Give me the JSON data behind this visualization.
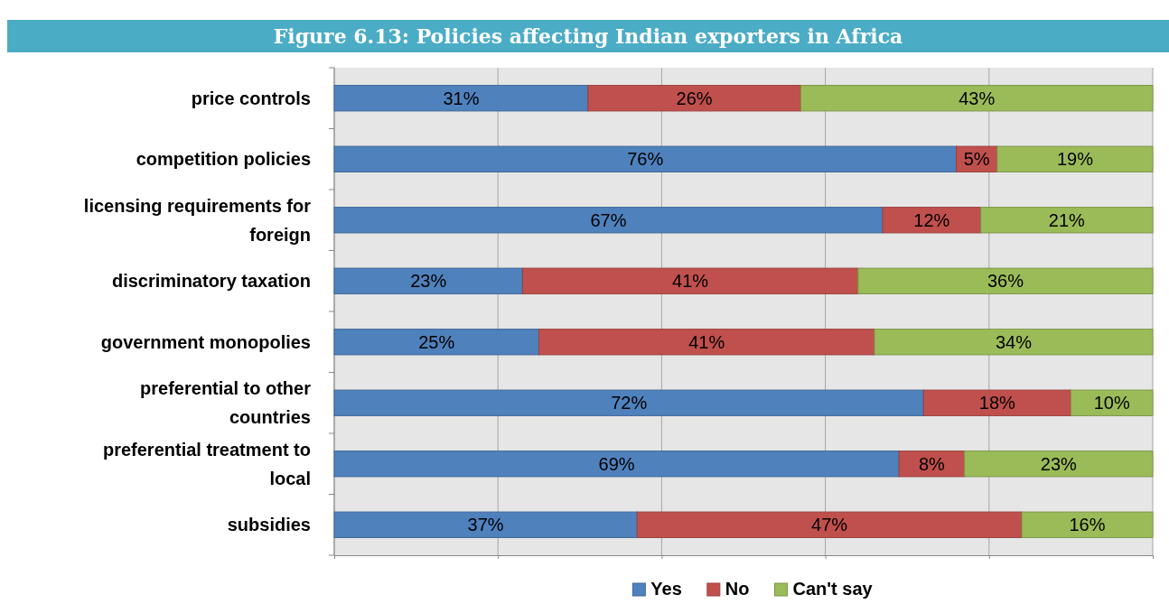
{
  "chart_data": {
    "type": "bar",
    "orientation": "horizontal",
    "stacked": true,
    "title": "Figure 6.13: Policies affecting Indian exporters in Africa",
    "categories": [
      "price controls",
      "competition policies",
      "licensing requirements for foreign",
      "discriminatory taxation",
      "government monopolies",
      "preferential to other countries",
      "preferential treatment to local",
      "subsidies"
    ],
    "series": [
      {
        "name": "Yes",
        "color": "#4f81bd",
        "values": [
          31,
          76,
          67,
          23,
          25,
          72,
          69,
          37
        ],
        "value_labels": [
          "31%",
          "76%",
          "67%",
          "23%",
          "25%",
          "72%",
          "69%",
          "37%"
        ]
      },
      {
        "name": "No",
        "color": "#c0504d",
        "values": [
          26,
          5,
          12,
          41,
          41,
          18,
          8,
          47
        ],
        "value_labels": [
          "26%",
          "5%",
          "12%",
          "41%",
          "41%",
          "18%",
          "8%",
          "47%"
        ]
      },
      {
        "name": "Can't say",
        "color": "#9bbb59",
        "values": [
          43,
          19,
          21,
          36,
          34,
          10,
          23,
          16
        ],
        "value_labels": [
          "43%",
          "19%",
          "21%",
          "36%",
          "34%",
          "10%",
          "23%",
          "16%"
        ]
      }
    ],
    "xlim": [
      0,
      100
    ],
    "xticks": [
      {
        "value": 0,
        "label": null
      },
      {
        "value": 20,
        "label": null
      },
      {
        "value": 40,
        "label": null
      },
      {
        "value": 60,
        "label": null
      },
      {
        "value": 80,
        "label": null
      },
      {
        "value": 100,
        "label": null
      }
    ],
    "tick_labels": "y",
    "grid": "x",
    "legend": "bottom"
  }
}
